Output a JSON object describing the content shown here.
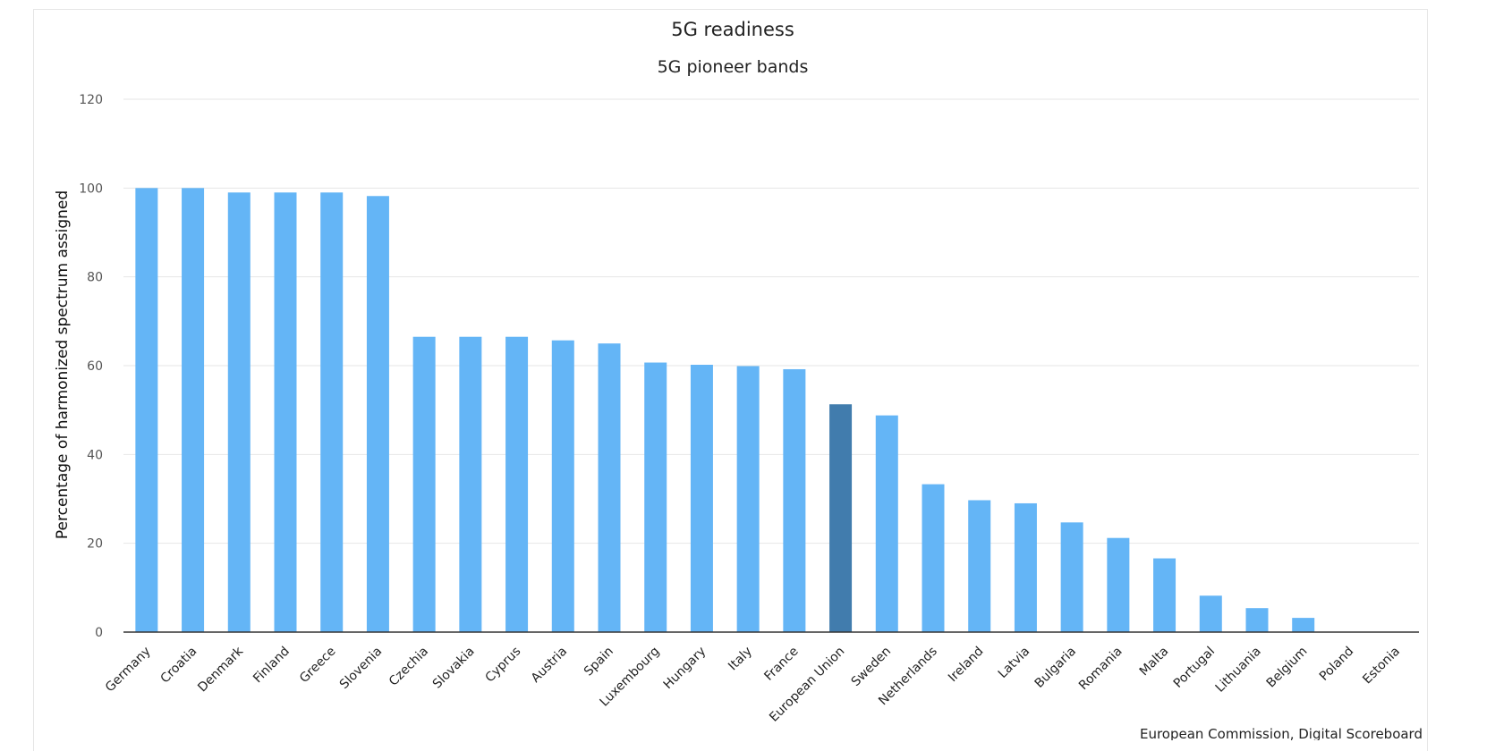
{
  "chart_data": {
    "type": "bar",
    "title": "5G readiness",
    "subtitle": "5G pioneer bands",
    "ylabel": "Percentage of harmonized spectrum assigned",
    "xlabel": "",
    "ylim": [
      0,
      120
    ],
    "yticks": [
      0,
      20,
      40,
      60,
      80,
      100,
      120
    ],
    "grid": true,
    "legend": "none",
    "categories": [
      "Germany",
      "Croatia",
      "Denmark",
      "Finland",
      "Greece",
      "Slovenia",
      "Czechia",
      "Slovakia",
      "Cyprus",
      "Austria",
      "Spain",
      "Luxembourg",
      "Hungary",
      "Italy",
      "France",
      "European Union",
      "Sweden",
      "Netherlands",
      "Ireland",
      "Latvia",
      "Bulgaria",
      "Romania",
      "Malta",
      "Portugal",
      "Lithuania",
      "Belgium",
      "Poland",
      "Estonia"
    ],
    "values": [
      100,
      100,
      99,
      99,
      99,
      98.2,
      66.5,
      66.5,
      66.5,
      65.7,
      65,
      60.7,
      60.2,
      59.9,
      59.2,
      51.3,
      48.8,
      33.3,
      29.7,
      29,
      24.7,
      21.2,
      16.6,
      8.2,
      5.4,
      3.2,
      0,
      0
    ],
    "highlight_category": "European Union",
    "colors": {
      "bar": "#64b5f6",
      "highlight": "#417cad",
      "grid": "#e6e6e6",
      "axis": "#333333"
    },
    "credits": "European Commission, Digital Scoreboard"
  }
}
